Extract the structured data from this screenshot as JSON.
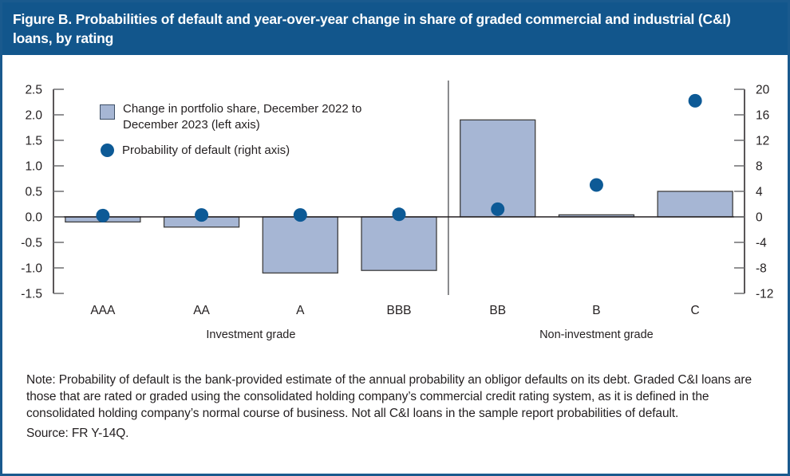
{
  "title": "Figure B. Probabilities of default and year-over-year change in share of graded commercial and industrial (C&I) loans, by rating",
  "legend": {
    "bar_label": "Change in portfolio share, December 2022 to December 2023 (left axis)",
    "dot_label": "Probability of default (right axis)"
  },
  "chart_data": {
    "type": "bar",
    "subtype": "dual-axis bar + scatter",
    "categories": [
      "AAA",
      "AA",
      "A",
      "BBB",
      "BB",
      "B",
      "C"
    ],
    "series": [
      {
        "name": "Change in portfolio share, December 2022 to December 2023",
        "type": "bar",
        "axis": "left",
        "values": [
          -0.1,
          -0.2,
          -1.1,
          -1.05,
          1.9,
          0.04,
          0.5
        ]
      },
      {
        "name": "Probability of default",
        "type": "scatter",
        "axis": "right",
        "values": [
          0.2,
          0.3,
          0.3,
          0.4,
          1.2,
          5.0,
          18.2
        ]
      }
    ],
    "left_axis": {
      "min": -1.5,
      "max": 2.5,
      "tick_values": [
        2.5,
        2.0,
        1.5,
        1.0,
        0.5,
        0.0,
        -0.5,
        -1.0,
        -1.5
      ],
      "tick_labels": [
        "2.5",
        "2.0",
        "1.5",
        "1.0",
        "0.5",
        "0.0",
        "-0.5",
        "-1.0",
        "-1.5"
      ]
    },
    "right_axis": {
      "min": -12,
      "max": 20,
      "tick_values": [
        20,
        16,
        12,
        8,
        4,
        0,
        -4,
        -8,
        -12
      ],
      "tick_labels": [
        "20",
        "16",
        "12",
        "8",
        "4",
        "0",
        "-4",
        "-8",
        "-12"
      ]
    },
    "group_labels": [
      {
        "label": "Investment grade",
        "from": 0,
        "to": 3
      },
      {
        "label": "Non-investment grade",
        "from": 4,
        "to": 6
      }
    ],
    "separator_after_index": 3,
    "grid": false,
    "legend_position": "top-left",
    "colors": {
      "bar_fill": "#a6b6d4",
      "bar_stroke": "#3f3f3f",
      "dot_fill": "#0d5a96",
      "axis_line": "#231f20",
      "tick_mark": "#6d6e71",
      "separator": "#6d6e71",
      "label_text": "#231f20"
    }
  },
  "notes": {
    "note": "Note: Probability of default is the bank-provided estimate of the annual probability an obligor defaults on its debt. Graded C&I loans are those that are rated or graded using the consolidated holding company’s commercial credit rating system, as it is defined in the consolidated holding company’s normal course of business. Not all C&I loans in the sample report probabilities of default.",
    "source": "Source: FR Y-14Q."
  },
  "colors": {
    "accent_blue": "#12568c",
    "border_blue": "#1a5a8e"
  }
}
